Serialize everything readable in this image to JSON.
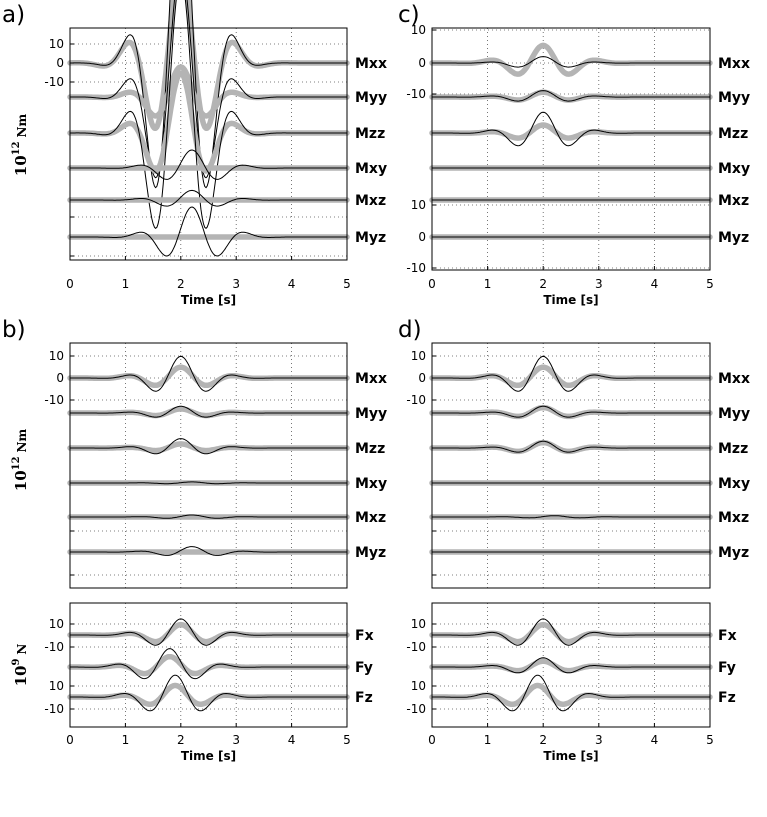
{
  "chart_data": [
    {
      "panel": "a)",
      "type": "line",
      "x_label": "Time [s]",
      "xlim": [
        0,
        5
      ],
      "x_ticks": [
        "0",
        "1",
        "2",
        "3",
        "4",
        "5"
      ],
      "y_label": "10",
      "y_label_sup": "12",
      "y_label_unit": "Nm",
      "y_ticks": [
        "10",
        "0",
        "-10"
      ],
      "series": [
        {
          "name": "Mxx",
          "gray": [
            8,
            0.36,
            2.0,
            0.55,
            0.9,
            2.95
          ],
          "black": [
            17,
            0.3,
            2.0,
            0.48,
            0.9,
            2.95
          ]
        },
        {
          "name": "Myy",
          "gray": [
            2.5,
            0.35,
            2.0,
            0.5,
            0.9,
            2.95
          ],
          "black": [
            11,
            0.3,
            2.0,
            0.48,
            0.9,
            2.95
          ]
        },
        {
          "name": "Mzz",
          "gray": [
            5,
            0.35,
            2.0,
            0.5,
            0.9,
            2.95
          ],
          "black": [
            13,
            0.3,
            2.0,
            0.48,
            0.9,
            2.95
          ]
        },
        {
          "name": "Mxy",
          "gray": [
            0,
            0.3,
            2.0,
            0.5,
            0.9,
            2.95
          ],
          "black": [
            1.5,
            0.3,
            2.2,
            0.5,
            0.9,
            2.95
          ]
        },
        {
          "name": "Mxz",
          "gray": [
            0,
            0.3,
            2.0,
            0.5,
            0.9,
            2.95
          ],
          "black": [
            0.8,
            0.3,
            2.2,
            0.5,
            0.9,
            2.95
          ]
        },
        {
          "name": "Myz",
          "gray": [
            0,
            0.3,
            2.0,
            0.5,
            0.9,
            2.95
          ],
          "black": [
            2.5,
            0.3,
            2.2,
            0.5,
            0.9,
            2.95
          ]
        }
      ]
    },
    {
      "panel": "c)",
      "type": "line",
      "x_label": "Time [s]",
      "xlim": [
        0,
        5
      ],
      "x_ticks": [
        "0",
        "1",
        "2",
        "3",
        "4",
        "5"
      ],
      "y_ticks_top": [
        "10",
        "0",
        "-10"
      ],
      "y_ticks_bottom": [
        "10",
        "0",
        "-10"
      ],
      "series": [
        {
          "name": "Mxx",
          "gray": [
            11,
            0.3,
            2.0,
            0.5,
            0.9,
            2.95
          ],
          "black": [
            4,
            0.35,
            2.0,
            0.5,
            0.9,
            2.95
          ]
        },
        {
          "name": "Myy",
          "gray": [
            3,
            0.3,
            2.0,
            0.5,
            0.9,
            2.95
          ],
          "black": [
            4,
            0.3,
            2.0,
            0.5,
            0.9,
            2.95
          ]
        },
        {
          "name": "Mzz",
          "gray": [
            5,
            0.35,
            2.0,
            0.5,
            0.9,
            2.95
          ],
          "black": [
            13,
            0.3,
            2.0,
            0.48,
            0.9,
            2.95
          ]
        },
        {
          "name": "Mxy",
          "gray": [
            0,
            0.3,
            2.0,
            0.5,
            0.9,
            2.95
          ],
          "black": [
            0,
            0.3,
            2.0,
            0.5,
            0.9,
            2.95
          ]
        },
        {
          "name": "Mxz",
          "gray": [
            0,
            0.3,
            2.0,
            0.5,
            0.9,
            2.95
          ],
          "black": [
            0,
            0.3,
            2.0,
            0.5,
            0.9,
            2.95
          ]
        },
        {
          "name": "Myz",
          "gray": [
            0,
            0.3,
            2.0,
            0.5,
            0.9,
            2.95
          ],
          "black": [
            0,
            0.3,
            2.0,
            0.5,
            0.9,
            2.95
          ]
        }
      ]
    },
    {
      "panel": "b)",
      "type": "line",
      "xlim": [
        0,
        5
      ],
      "y_label": "10",
      "y_label_sup": "12",
      "y_label_unit": "Nm",
      "y_ticks": [
        "10",
        "0",
        "-10"
      ],
      "series": [
        {
          "name": "Mxx",
          "gray": [
            8,
            0.36,
            2.0,
            0.55,
            0.9,
            2.95
          ],
          "black": [
            16,
            0.3,
            2.0,
            0.48,
            0.9,
            2.95
          ]
        },
        {
          "name": "Myy",
          "gray": [
            3,
            0.35,
            2.0,
            0.5,
            0.9,
            2.95
          ],
          "black": [
            5,
            0.3,
            2.0,
            0.48,
            0.9,
            2.95
          ]
        },
        {
          "name": "Mzz",
          "gray": [
            3,
            0.35,
            2.0,
            0.5,
            0.9,
            2.95
          ],
          "black": [
            7,
            0.3,
            2.0,
            0.48,
            0.9,
            2.95
          ]
        },
        {
          "name": "Mxy",
          "gray": [
            0,
            0.3,
            2.0,
            0.5,
            0.9,
            2.95
          ],
          "black": [
            0.8,
            0.3,
            2.2,
            0.5,
            0.9,
            2.95
          ]
        },
        {
          "name": "Mxz",
          "gray": [
            0,
            0.3,
            2.0,
            0.5,
            0.9,
            2.95
          ],
          "black": [
            1.5,
            0.35,
            2.2,
            0.5,
            0.9,
            2.95
          ]
        },
        {
          "name": "Myz",
          "gray": [
            0,
            0.3,
            2.0,
            0.5,
            0.9,
            2.95
          ],
          "black": [
            4,
            0.3,
            2.2,
            0.5,
            0.9,
            2.95
          ]
        }
      ]
    },
    {
      "panel": "b)",
      "type": "line",
      "x_label": "Time [s]",
      "xlim": [
        0,
        5
      ],
      "x_ticks": [
        "0",
        "1",
        "2",
        "3",
        "4",
        "5"
      ],
      "y_label": "10",
      "y_label_sup": "9",
      "y_label_unit": "N",
      "y_ticks": [
        "10",
        "-10",
        "10",
        "-10"
      ],
      "series": [
        {
          "name": "Fx",
          "gray": [
            9,
            0.35,
            2.0,
            0.5,
            0.9,
            2.95
          ],
          "black": [
            14,
            0.3,
            2.0,
            0.5,
            0.9,
            2.95
          ]
        },
        {
          "name": "Fy",
          "gray": [
            9,
            0.35,
            1.8,
            0.5,
            0.9,
            2.95
          ],
          "black": [
            16,
            0.3,
            1.8,
            0.5,
            0.9,
            2.95
          ]
        },
        {
          "name": "Fz",
          "gray": [
            10,
            0.35,
            1.9,
            0.5,
            0.9,
            2.95
          ],
          "black": [
            19,
            0.3,
            1.9,
            0.5,
            0.9,
            2.95
          ]
        }
      ]
    },
    {
      "panel": "d)",
      "type": "line",
      "xlim": [
        0,
        5
      ],
      "y_ticks": [
        "10",
        "0",
        "-10"
      ],
      "series": [
        {
          "name": "Mxx",
          "gray": [
            8,
            0.36,
            2.0,
            0.55,
            0.9,
            2.95
          ],
          "black": [
            16,
            0.3,
            2.0,
            0.48,
            0.9,
            2.95
          ]
        },
        {
          "name": "Myy",
          "gray": [
            4,
            0.35,
            2.0,
            0.5,
            0.9,
            2.95
          ],
          "black": [
            5,
            0.3,
            2.0,
            0.48,
            0.9,
            2.95
          ]
        },
        {
          "name": "Mzz",
          "gray": [
            4,
            0.35,
            2.0,
            0.5,
            0.9,
            2.95
          ],
          "black": [
            5,
            0.3,
            2.0,
            0.48,
            0.9,
            2.95
          ]
        },
        {
          "name": "Mxy",
          "gray": [
            0,
            0.3,
            2.0,
            0.5,
            0.9,
            2.95
          ],
          "black": [
            0,
            0.3,
            2.0,
            0.5,
            0.9,
            2.95
          ]
        },
        {
          "name": "Mxz",
          "gray": [
            0,
            0.3,
            2.0,
            0.5,
            0.9,
            2.95
          ],
          "black": [
            1,
            0.35,
            2.2,
            0.5,
            0.9,
            2.95
          ]
        },
        {
          "name": "Myz",
          "gray": [
            0,
            0.3,
            2.0,
            0.5,
            0.9,
            2.95
          ],
          "black": [
            0,
            0.3,
            2.0,
            0.5,
            0.9,
            2.95
          ]
        }
      ]
    },
    {
      "panel": "d)",
      "type": "line",
      "x_label": "Time [s]",
      "xlim": [
        0,
        5
      ],
      "x_ticks": [
        "0",
        "1",
        "2",
        "3",
        "4",
        "5"
      ],
      "y_ticks": [
        "10",
        "-10",
        "10",
        "-10"
      ],
      "series": [
        {
          "name": "Fx",
          "gray": [
            9,
            0.35,
            2.0,
            0.5,
            0.9,
            2.95
          ],
          "black": [
            14,
            0.3,
            2.0,
            0.5,
            0.9,
            2.95
          ]
        },
        {
          "name": "Fy",
          "gray": [
            5,
            0.35,
            2.0,
            0.5,
            0.9,
            2.95
          ],
          "black": [
            8,
            0.3,
            2.0,
            0.5,
            0.9,
            2.95
          ]
        },
        {
          "name": "Fz",
          "gray": [
            10,
            0.35,
            1.9,
            0.5,
            0.9,
            2.95
          ],
          "black": [
            19,
            0.3,
            1.9,
            0.5,
            0.9,
            2.95
          ]
        }
      ]
    }
  ],
  "colors": {
    "synthetic": "#b4b4b4",
    "inverted": "#000000",
    "grid": "#555555"
  }
}
